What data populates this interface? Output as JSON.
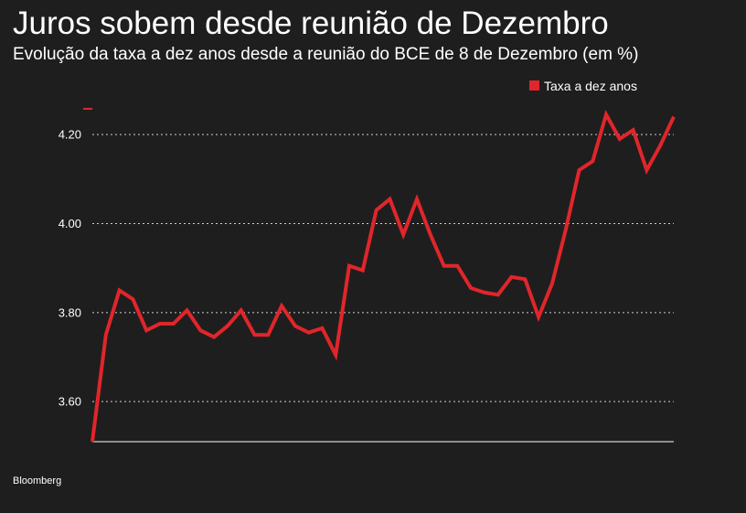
{
  "header": {
    "title": "Juros sobem desde reunião de Dezembro",
    "subtitle": "Evolução da taxa a dez anos desde a reunião do BCE de 8 de Dezembro (em %)"
  },
  "footer": {
    "source": "Bloomberg"
  },
  "colors": {
    "background": "#1f1e1e",
    "series": "#e0262b",
    "text": "#ffffff",
    "grid": "#cfcfcf"
  },
  "chart_data": {
    "type": "line",
    "title": "Juros sobem desde reunião de Dezembro",
    "subtitle": "Evolução da taxa a dez anos desde a reunião do BCE de 8 de Dezembro (em %)",
    "xlabel": "",
    "ylabel": "",
    "ylim": [
      3.51,
      4.27
    ],
    "yticks": [
      3.6,
      3.8,
      4.0,
      4.2
    ],
    "ytick_labels": [
      "3.60",
      "3.80",
      "4.00",
      "4.20"
    ],
    "grid": true,
    "legend_position": "top-right",
    "series": [
      {
        "name": "Taxa a dez anos",
        "color": "#e0262b",
        "values": [
          3.51,
          3.75,
          3.85,
          3.83,
          3.76,
          3.775,
          3.775,
          3.805,
          3.76,
          3.745,
          3.77,
          3.805,
          3.75,
          3.75,
          3.815,
          3.77,
          3.755,
          3.765,
          3.705,
          3.905,
          3.895,
          4.03,
          4.055,
          3.975,
          4.055,
          3.975,
          3.905,
          3.905,
          3.855,
          3.845,
          3.84,
          3.88,
          3.875,
          3.79,
          3.865,
          3.985,
          4.12,
          4.14,
          4.245,
          4.19,
          4.21,
          4.12,
          4.175,
          4.24
        ]
      }
    ]
  }
}
